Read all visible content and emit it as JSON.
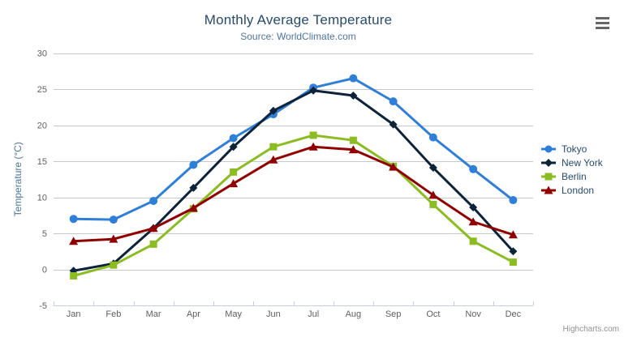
{
  "title": "Monthly Average Temperature",
  "subtitle": "Source: WorldClimate.com",
  "credits_label": "Highcharts.com",
  "menu_icon": "hamburger-icon",
  "style": {
    "title_color": "#274b6d",
    "subtitle_color": "#4d759e",
    "axis_title_color": "#4d759e",
    "tick_label_color": "#606060",
    "grid_color": "#c8c8c8",
    "axis_line_color": "#c0d0e0",
    "legend_text_color": "#274b6d",
    "credits_color": "#909090",
    "menu_icon_color": "#666666",
    "background_color": "#ffffff"
  },
  "chart_data": {
    "type": "line",
    "title": "Monthly Average Temperature",
    "subtitle": "Source: WorldClimate.com",
    "xlabel": "",
    "ylabel": "Temperature (°C)",
    "categories": [
      "Jan",
      "Feb",
      "Mar",
      "Apr",
      "May",
      "Jun",
      "Jul",
      "Aug",
      "Sep",
      "Oct",
      "Nov",
      "Dec"
    ],
    "yticks": [
      -5,
      0,
      5,
      10,
      15,
      20,
      25,
      30
    ],
    "ylim": [
      -5,
      30
    ],
    "grid": true,
    "legend_position": "right",
    "series": [
      {
        "name": "Tokyo",
        "color": "#2f7ed8",
        "marker": "circle",
        "values": [
          7.0,
          6.9,
          9.5,
          14.5,
          18.2,
          21.5,
          25.2,
          26.5,
          23.3,
          18.3,
          13.9,
          9.6
        ]
      },
      {
        "name": "New York",
        "color": "#0d233a",
        "marker": "diamond",
        "values": [
          -0.2,
          0.8,
          5.7,
          11.3,
          17.0,
          22.0,
          24.8,
          24.1,
          20.1,
          14.1,
          8.6,
          2.5
        ]
      },
      {
        "name": "Berlin",
        "color": "#8bbc21",
        "marker": "square",
        "values": [
          -0.9,
          0.6,
          3.5,
          8.4,
          13.5,
          17.0,
          18.6,
          17.9,
          14.3,
          9.0,
          3.9,
          1.0
        ]
      },
      {
        "name": "London",
        "color": "#910000",
        "marker": "triangle",
        "values": [
          3.9,
          4.2,
          5.7,
          8.5,
          11.9,
          15.2,
          17.0,
          16.6,
          14.2,
          10.3,
          6.6,
          4.8
        ]
      }
    ]
  }
}
